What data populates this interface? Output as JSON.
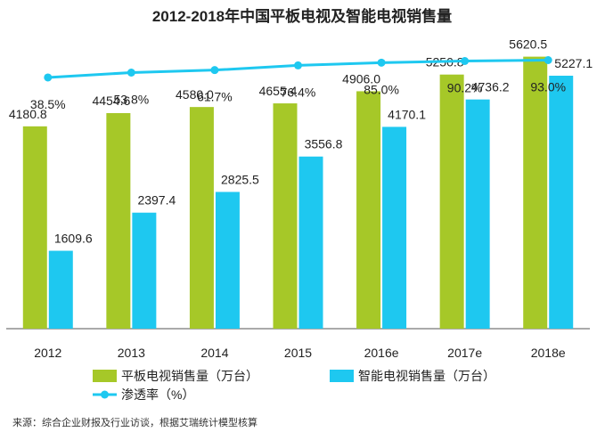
{
  "chart_data": {
    "type": "bar",
    "title": "2012-2018年中国平板电视及智能电视销售量",
    "categories": [
      "2012",
      "2013",
      "2014",
      "2015",
      "2016e",
      "2017e",
      "2018e"
    ],
    "series": [
      {
        "name": "平板电视销售量（万台）",
        "type": "bar",
        "color": "#a6c828",
        "values": [
          4180.8,
          4454.6,
          4580.0,
          4655.4,
          4906.0,
          5250.8,
          5620.5
        ],
        "labels": [
          "4180.8",
          "4454.6",
          "4580.0",
          "4655.4",
          "4906.0",
          "5250.8",
          "5620.5"
        ]
      },
      {
        "name": "智能电视销售量（万台）",
        "type": "bar",
        "color": "#1ec8f0",
        "values": [
          1609.6,
          2397.4,
          2825.5,
          3556.8,
          4170.1,
          4736.2,
          5227.1
        ],
        "labels": [
          "1609.6",
          "2397.4",
          "2825.5",
          "3556.8",
          "4170.1",
          "4736.2",
          "5227.1"
        ]
      },
      {
        "name": "渗透率（%）",
        "type": "line",
        "color": "#1ec8f0",
        "values": [
          38.5,
          53.8,
          61.7,
          76.4,
          85.0,
          90.2,
          93.0
        ],
        "labels": [
          "38.5%",
          "53.8%",
          "61.7%",
          "76.4%",
          "85.0%",
          "90.2%",
          "93.0%"
        ]
      }
    ],
    "ylim": [
      0,
      6000
    ],
    "line_ylim": [
      0,
      100
    ],
    "grid": false,
    "legend_position": "bottom-left"
  },
  "source_text": "来源：综合企业财报及行业访谈，根据艾瑞统计模型核算"
}
